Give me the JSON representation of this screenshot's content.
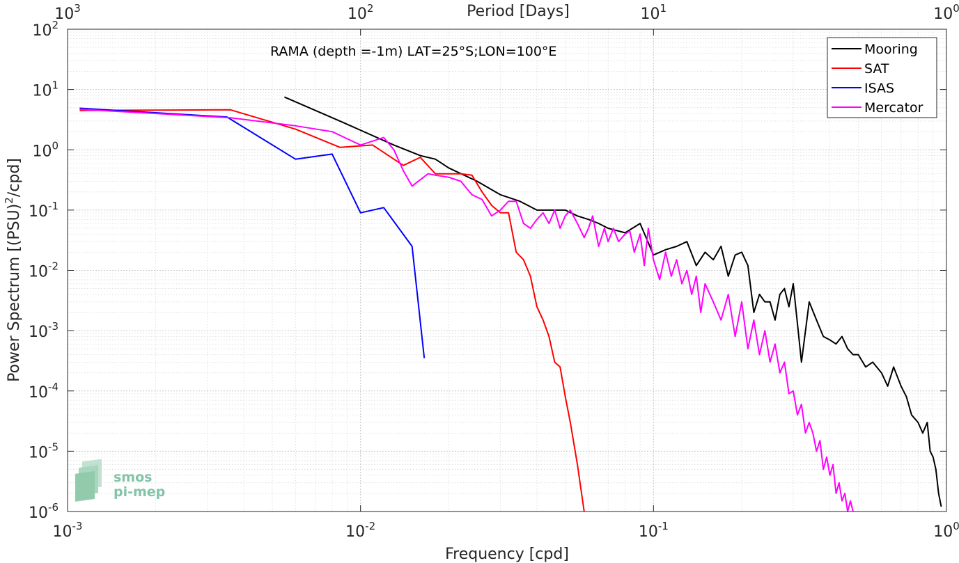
{
  "chart_data": {
    "type": "line",
    "title": "",
    "annotation": "RAMA (depth =-1m) LAT=25°S;LON=100°E",
    "xlabel": "Frequency [cpd]",
    "ylabel_main": "Power Spectrum [(PSU)",
    "ylabel_sup": "2",
    "ylabel_tail": "/cpd]",
    "top_xlabel": "Period [Days]",
    "xscale": "log",
    "yscale": "log",
    "xlim": [
      0.001,
      1
    ],
    "ylim": [
      1e-06,
      100
    ],
    "grid": true,
    "legend_position": "top-right",
    "x_ticks": [
      {
        "value": 0.001,
        "base": "10",
        "exp": "-3"
      },
      {
        "value": 0.01,
        "base": "10",
        "exp": "-2"
      },
      {
        "value": 0.1,
        "base": "10",
        "exp": "-1"
      },
      {
        "value": 1,
        "base": "10",
        "exp": "0"
      }
    ],
    "y_ticks": [
      {
        "value": 1e-06,
        "base": "10",
        "exp": "-6"
      },
      {
        "value": 1e-05,
        "base": "10",
        "exp": "-5"
      },
      {
        "value": 0.0001,
        "base": "10",
        "exp": "-4"
      },
      {
        "value": 0.001,
        "base": "10",
        "exp": "-3"
      },
      {
        "value": 0.01,
        "base": "10",
        "exp": "-2"
      },
      {
        "value": 0.1,
        "base": "10",
        "exp": "-1"
      },
      {
        "value": 1,
        "base": "10",
        "exp": "0"
      },
      {
        "value": 10,
        "base": "10",
        "exp": "1"
      },
      {
        "value": 100,
        "base": "10",
        "exp": "2"
      }
    ],
    "top_ticks": [
      {
        "value": 0.001,
        "base": "10",
        "exp": "3"
      },
      {
        "value": 0.01,
        "base": "10",
        "exp": "2"
      },
      {
        "value": 0.1,
        "base": "10",
        "exp": "1"
      },
      {
        "value": 1,
        "base": "10",
        "exp": "0"
      }
    ],
    "series": [
      {
        "name": "Mooring",
        "color": "#000000",
        "x": [
          0.0055,
          0.0085,
          0.013,
          0.016,
          0.018,
          0.02,
          0.025,
          0.03,
          0.035,
          0.04,
          0.045,
          0.05,
          0.055,
          0.06,
          0.065,
          0.07,
          0.08,
          0.09,
          0.1,
          0.11,
          0.12,
          0.13,
          0.14,
          0.15,
          0.16,
          0.17,
          0.18,
          0.19,
          0.2,
          0.21,
          0.22,
          0.23,
          0.24,
          0.25,
          0.26,
          0.27,
          0.28,
          0.29,
          0.3,
          0.32,
          0.34,
          0.36,
          0.38,
          0.4,
          0.42,
          0.44,
          0.46,
          0.48,
          0.5,
          0.53,
          0.56,
          0.6,
          0.63,
          0.66,
          0.7,
          0.73,
          0.76,
          0.8,
          0.83,
          0.86,
          0.88,
          0.9,
          0.92,
          0.94,
          0.96
        ],
        "y": [
          7.5,
          3.0,
          1.2,
          0.8,
          0.7,
          0.5,
          0.3,
          0.18,
          0.14,
          0.1,
          0.1,
          0.1,
          0.08,
          0.07,
          0.06,
          0.05,
          0.042,
          0.06,
          0.018,
          0.022,
          0.025,
          0.03,
          0.012,
          0.02,
          0.015,
          0.025,
          0.008,
          0.018,
          0.02,
          0.012,
          0.002,
          0.004,
          0.003,
          0.003,
          0.0015,
          0.004,
          0.005,
          0.0025,
          0.006,
          0.0003,
          0.003,
          0.0015,
          0.0008,
          0.0007,
          0.0006,
          0.0008,
          0.0005,
          0.0004,
          0.0004,
          0.00025,
          0.0003,
          0.0002,
          0.00012,
          0.00025,
          0.00012,
          8e-05,
          4e-05,
          3e-05,
          2e-05,
          3e-05,
          1e-05,
          8e-06,
          5e-06,
          2e-06,
          1.2e-06
        ]
      },
      {
        "name": "SAT",
        "color": "#ff0000",
        "x": [
          0.0011,
          0.0036,
          0.006,
          0.0085,
          0.011,
          0.014,
          0.016,
          0.018,
          0.022,
          0.024,
          0.026,
          0.028,
          0.03,
          0.032,
          0.034,
          0.036,
          0.038,
          0.04,
          0.042,
          0.044,
          0.046,
          0.048,
          0.05,
          0.052,
          0.055,
          0.058
        ],
        "y": [
          4.5,
          4.6,
          2.2,
          1.1,
          1.2,
          0.55,
          0.75,
          0.4,
          0.4,
          0.38,
          0.2,
          0.12,
          0.09,
          0.09,
          0.02,
          0.015,
          0.008,
          0.0025,
          0.0015,
          0.0008,
          0.0003,
          0.00025,
          8e-05,
          3e-05,
          6e-06,
          1e-06
        ]
      },
      {
        "name": "ISAS",
        "color": "#0000ff",
        "x": [
          0.0011,
          0.0035,
          0.006,
          0.008,
          0.01,
          0.012,
          0.015,
          0.0165
        ],
        "y": [
          4.9,
          3.5,
          0.7,
          0.85,
          0.09,
          0.11,
          0.025,
          0.00035
        ]
      },
      {
        "name": "Mercator",
        "color": "#ff00ff",
        "x": [
          0.0011,
          0.0036,
          0.006,
          0.008,
          0.01,
          0.012,
          0.013,
          0.014,
          0.015,
          0.017,
          0.018,
          0.02,
          0.022,
          0.024,
          0.026,
          0.028,
          0.03,
          0.032,
          0.034,
          0.036,
          0.038,
          0.04,
          0.042,
          0.044,
          0.046,
          0.048,
          0.05,
          0.052,
          0.055,
          0.058,
          0.06,
          0.062,
          0.065,
          0.068,
          0.07,
          0.073,
          0.076,
          0.08,
          0.083,
          0.086,
          0.09,
          0.093,
          0.096,
          0.1,
          0.105,
          0.11,
          0.115,
          0.12,
          0.125,
          0.13,
          0.135,
          0.14,
          0.145,
          0.15,
          0.16,
          0.17,
          0.18,
          0.19,
          0.2,
          0.21,
          0.22,
          0.23,
          0.24,
          0.25,
          0.26,
          0.27,
          0.28,
          0.29,
          0.3,
          0.31,
          0.32,
          0.33,
          0.34,
          0.35,
          0.36,
          0.37,
          0.38,
          0.39,
          0.4,
          0.41,
          0.42,
          0.43,
          0.44,
          0.45,
          0.46,
          0.47,
          0.48
        ],
        "y": [
          4.7,
          3.4,
          2.5,
          2.0,
          1.2,
          1.6,
          1.0,
          0.45,
          0.25,
          0.4,
          0.38,
          0.35,
          0.3,
          0.18,
          0.15,
          0.08,
          0.1,
          0.14,
          0.14,
          0.06,
          0.05,
          0.07,
          0.09,
          0.06,
          0.1,
          0.05,
          0.08,
          0.1,
          0.06,
          0.035,
          0.05,
          0.08,
          0.025,
          0.05,
          0.03,
          0.05,
          0.03,
          0.04,
          0.045,
          0.02,
          0.04,
          0.012,
          0.05,
          0.015,
          0.007,
          0.02,
          0.008,
          0.015,
          0.006,
          0.01,
          0.004,
          0.008,
          0.002,
          0.006,
          0.003,
          0.0015,
          0.004,
          0.0008,
          0.003,
          0.0005,
          0.0015,
          0.0004,
          0.001,
          0.0003,
          0.0006,
          0.0002,
          0.0003,
          9e-05,
          0.0001,
          4e-05,
          6e-05,
          2e-05,
          3e-05,
          2e-05,
          1e-05,
          1.5e-05,
          5e-06,
          8e-06,
          4e-06,
          6e-06,
          2e-06,
          3e-06,
          1.5e-06,
          2e-06,
          1e-06,
          1.5e-06,
          1e-06
        ]
      }
    ]
  },
  "logo": {
    "line1": "smos",
    "line2": "pi-mep"
  }
}
